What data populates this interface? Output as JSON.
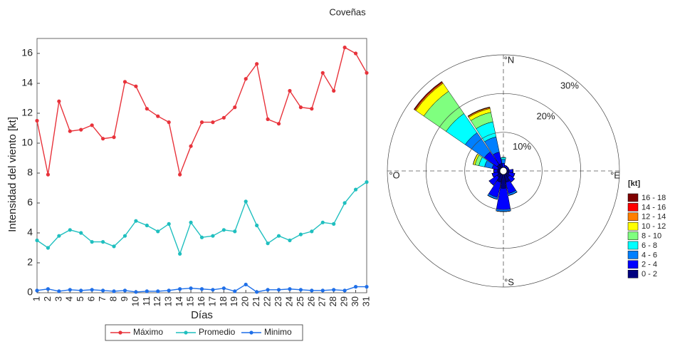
{
  "chart_data": [
    {
      "type": "line",
      "title": "Coveñas",
      "xlabel": "Días",
      "ylabel": "Intensidad del viento [kt]",
      "x": [
        1,
        2,
        3,
        4,
        5,
        6,
        7,
        8,
        9,
        10,
        11,
        12,
        13,
        14,
        15,
        16,
        17,
        18,
        19,
        20,
        21,
        22,
        23,
        24,
        25,
        26,
        27,
        28,
        29,
        30,
        31
      ],
      "xlim": [
        1,
        31
      ],
      "xticks": [
        1,
        2,
        3,
        4,
        5,
        6,
        7,
        8,
        9,
        10,
        11,
        12,
        13,
        14,
        15,
        16,
        17,
        18,
        19,
        20,
        21,
        22,
        23,
        24,
        25,
        26,
        27,
        28,
        29,
        30,
        31
      ],
      "ylim": [
        0,
        17
      ],
      "yticks": [
        0,
        2,
        4,
        6,
        8,
        10,
        12,
        14,
        16
      ],
      "grid": false,
      "series": [
        {
          "name": "Máximo",
          "color": "#e8333b",
          "values": [
            11.5,
            7.9,
            12.8,
            10.8,
            10.9,
            11.2,
            10.3,
            10.4,
            14.1,
            13.8,
            12.3,
            11.8,
            11.4,
            7.9,
            9.8,
            11.4,
            11.4,
            11.7,
            12.4,
            14.3,
            15.3,
            11.6,
            11.3,
            13.5,
            12.4,
            12.3,
            14.7,
            13.5,
            16.4,
            16.0,
            14.7
          ]
        },
        {
          "name": "Promedio",
          "color": "#1fbfbf",
          "values": [
            3.5,
            3.0,
            3.8,
            4.2,
            4.0,
            3.4,
            3.4,
            3.1,
            3.8,
            4.8,
            4.5,
            4.1,
            4.6,
            2.6,
            4.7,
            3.7,
            3.8,
            4.2,
            4.1,
            6.1,
            4.5,
            3.3,
            3.8,
            3.5,
            3.9,
            4.1,
            4.7,
            4.6,
            6.0,
            6.9,
            7.4
          ]
        },
        {
          "name": "Minimo",
          "color": "#1f6fe8",
          "values": [
            0.15,
            0.25,
            0.1,
            0.2,
            0.15,
            0.2,
            0.15,
            0.1,
            0.15,
            0.05,
            0.1,
            0.1,
            0.15,
            0.25,
            0.3,
            0.25,
            0.2,
            0.3,
            0.1,
            0.55,
            0.05,
            0.2,
            0.2,
            0.25,
            0.2,
            0.15,
            0.15,
            0.2,
            0.15,
            0.4,
            0.4
          ]
        }
      ]
    },
    {
      "type": "windrose",
      "legend_title": "[kt]",
      "direction_labels": [
        "°N",
        "°E",
        "°S",
        "°O"
      ],
      "directions": [
        0,
        22.5,
        45,
        67.5,
        90,
        112.5,
        135,
        157.5,
        180,
        202.5,
        225,
        247.5,
        270,
        292.5,
        315,
        337.5
      ],
      "rlim": [
        0,
        30
      ],
      "rticks": [
        {
          "value": 10,
          "label": "10%"
        },
        {
          "value": 20,
          "label": "20%"
        },
        {
          "value": 30,
          "label": "30%"
        }
      ],
      "series": [
        {
          "name": "0 - 2",
          "color": "#00007f",
          "values": [
            1,
            1,
            1,
            1,
            1.5,
            1.5,
            2,
            3,
            4.5,
            3,
            2,
            1.5,
            1.5,
            1.5,
            2,
            2
          ]
        },
        {
          "name": "2 - 4",
          "color": "#0000ff",
          "values": [
            1,
            0.5,
            0.5,
            0.5,
            1,
            1.5,
            1.5,
            3,
            5.5,
            4,
            2.5,
            1.5,
            1,
            1.5,
            4,
            3
          ]
        },
        {
          "name": "4 - 6",
          "color": "#007fff",
          "values": [
            1,
            0,
            0,
            0,
            0,
            0,
            0,
            0.5,
            0.5,
            0.5,
            0,
            0,
            0,
            2,
            6,
            4
          ]
        },
        {
          "name": "6 - 8",
          "color": "#00ffff",
          "values": [
            0.5,
            0,
            0,
            0,
            0,
            0,
            0,
            0,
            0,
            0,
            0,
            0,
            0,
            1.5,
            6,
            4
          ]
        },
        {
          "name": "8 - 10",
          "color": "#7fff7f",
          "values": [
            0,
            0,
            0,
            0,
            0,
            0,
            0,
            0,
            0,
            0,
            0,
            0,
            0,
            1,
            7,
            2.5
          ]
        },
        {
          "name": "10 - 12",
          "color": "#ffff00",
          "values": [
            0,
            0,
            0,
            0,
            0,
            0,
            0,
            0,
            0,
            0,
            0,
            0,
            0,
            0.5,
            2.5,
            1
          ]
        },
        {
          "name": "12 - 14",
          "color": "#ff7f00",
          "values": [
            0,
            0,
            0,
            0,
            0,
            0,
            0,
            0,
            0,
            0,
            0,
            0,
            0,
            0,
            0.3,
            0.3
          ]
        },
        {
          "name": "14 - 16",
          "color": "#ff0000",
          "values": [
            0,
            0,
            0,
            0,
            0,
            0,
            0,
            0,
            0,
            0,
            0,
            0,
            0,
            0,
            0.2,
            0.1
          ]
        },
        {
          "name": "16 - 18",
          "color": "#7f0000",
          "values": [
            0,
            0,
            0,
            0,
            0,
            0,
            0,
            0,
            0,
            0,
            0,
            0,
            0,
            0,
            0.1,
            0
          ]
        }
      ]
    }
  ]
}
